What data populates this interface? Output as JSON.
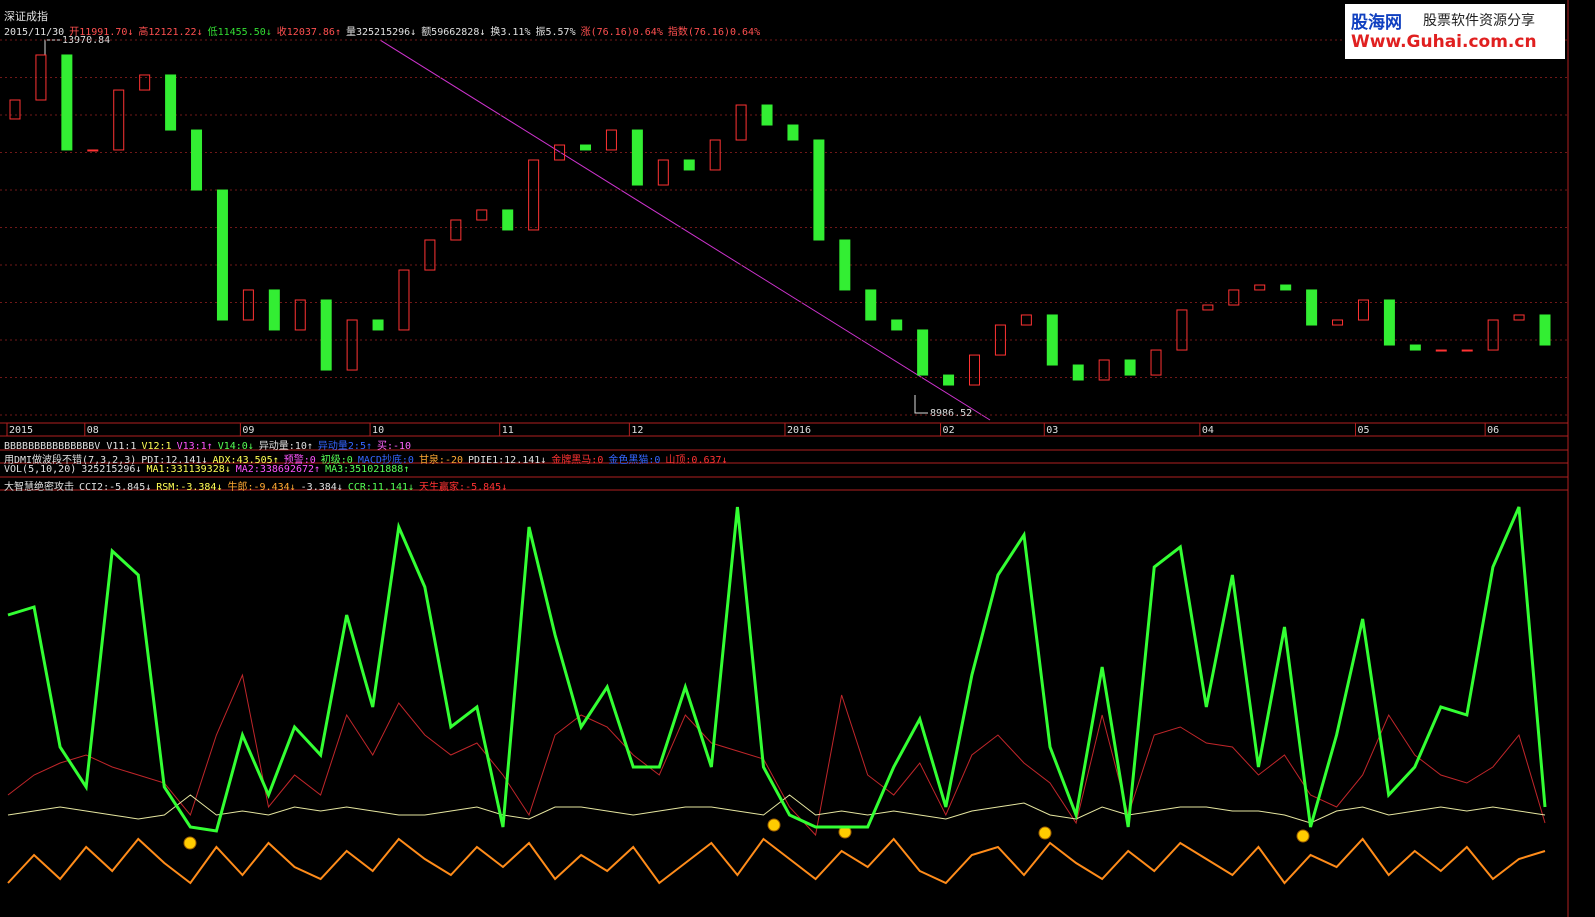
{
  "header": {
    "title": "深证成指",
    "logo": {
      "name": "股海网",
      "slogan": "股票软件资源分享",
      "url": "Www.Guhai.com.cn"
    },
    "quote": [
      {
        "text": "2015/11/30",
        "color": "#e0e0e0"
      },
      {
        "text": "开11991.70↓",
        "color": "#ff5050"
      },
      {
        "text": "高12121.22↓",
        "color": "#ff5050"
      },
      {
        "text": "低11455.50↓",
        "color": "#33dd33"
      },
      {
        "text": "收12037.86↑",
        "color": "#ff5050"
      },
      {
        "text": "量325215296↓",
        "color": "#e0e0e0"
      },
      {
        "text": "额59662828↓",
        "color": "#e0e0e0"
      },
      {
        "text": "换3.11%",
        "color": "#e0e0e0"
      },
      {
        "text": "振5.57%",
        "color": "#e0e0e0"
      },
      {
        "text": "涨(76.16)0.64%",
        "color": "#ff5050"
      },
      {
        "text": "指数(76.16)0.64%",
        "color": "#ff5050"
      }
    ]
  },
  "indicators": [
    {
      "items": [
        {
          "text": "BBBBBBBBBBBBBBBV V11:1",
          "color": "#e0e0e0"
        },
        {
          "text": "V12:1",
          "color": "#ffff55"
        },
        {
          "text": "V13:1↑",
          "color": "#ff55ff"
        },
        {
          "text": "V14:0↓",
          "color": "#55ff55"
        },
        {
          "text": "异动量:10↑",
          "color": "#e0e0e0"
        },
        {
          "text": "异动量2:5↑",
          "color": "#3366ff"
        },
        {
          "text": "买:-10",
          "color": "#ff66ff"
        }
      ]
    },
    {
      "items": [
        {
          "text": "用DMI做波段不错(7,3,2,3)",
          "color": "#e0e0e0"
        },
        {
          "text": "PDI:12.141↓",
          "color": "#e0e0e0"
        },
        {
          "text": "ADX:43.505↑",
          "color": "#ffff55"
        },
        {
          "text": "预警:0",
          "color": "#ff55ff"
        },
        {
          "text": "初级:0",
          "color": "#55ff55"
        },
        {
          "text": "MACD抄底:0",
          "color": "#3366ff"
        },
        {
          "text": "甘泉:-20",
          "color": "#ffaa33"
        },
        {
          "text": "PDIE1:12.141↓",
          "color": "#e0e0e0"
        },
        {
          "text": "金牌黑马:0",
          "color": "#ff3333"
        },
        {
          "text": "金色黑猫:0",
          "color": "#3366ff"
        },
        {
          "text": "山顶:0.637↓",
          "color": "#ff3333"
        }
      ]
    },
    {
      "items": [
        {
          "text": "VOL(5,10,20)",
          "color": "#e0e0e0"
        },
        {
          "text": "325215296↓",
          "color": "#e0e0e0"
        },
        {
          "text": "MA1:331139328↓",
          "color": "#ffff55"
        },
        {
          "text": "MA2:338692672↑",
          "color": "#ff55ff"
        },
        {
          "text": "MA3:351021888↑",
          "color": "#55ff55"
        }
      ]
    },
    {
      "items": [
        {
          "text": "大智慧绝密攻击",
          "color": "#e0e0e0"
        },
        {
          "text": "CCI2:-5.845↓",
          "color": "#e0e0e0"
        },
        {
          "text": "RSM:-3.384↓",
          "color": "#ffff55"
        },
        {
          "text": "牛郎:-9.434↓",
          "color": "#ffaa33"
        },
        {
          "text": "-3.384↓",
          "color": "#e0e0e0"
        },
        {
          "text": "CCR:11.141↓",
          "color": "#55ff55"
        },
        {
          "text": "天生赢家:-5.845↓",
          "color": "#ff3333"
        }
      ]
    }
  ],
  "chart_data": [
    {
      "type": "candlestick",
      "annotations": [
        "13970.84",
        "8986.52"
      ],
      "up_color": "#ff3333",
      "down_color": "#33ee33",
      "ylim": [
        8821,
        14241
      ],
      "xticks": [
        {
          "value": 0,
          "label": "2015"
        },
        {
          "value": 3,
          "label": "08"
        },
        {
          "value": 9,
          "label": "09"
        },
        {
          "value": 14,
          "label": "10"
        },
        {
          "value": 19,
          "label": "11"
        },
        {
          "value": 24,
          "label": "12"
        },
        {
          "value": 30,
          "label": "2016"
        },
        {
          "value": 36,
          "label": "02"
        },
        {
          "value": 40,
          "label": "03"
        },
        {
          "value": 46,
          "label": "04"
        },
        {
          "value": 52,
          "label": "05"
        },
        {
          "value": 57,
          "label": "06"
        }
      ],
      "open": [
        12900,
        13157,
        13767,
        12480,
        12480,
        13292,
        13496,
        12750,
        11937,
        10176,
        10583,
        10041,
        10447,
        9498,
        10176,
        10041,
        10853,
        11260,
        11531,
        11667,
        11396,
        12344,
        12547,
        12480,
        12750,
        12005,
        12344,
        12209,
        12615,
        13089,
        12818,
        12615,
        11260,
        10583,
        10176,
        10041,
        9430,
        9295,
        9701,
        10108,
        10244,
        9566,
        9363,
        9634,
        9430,
        9769,
        10312,
        10379,
        10583,
        10650,
        10583,
        10108,
        10176,
        10447,
        9837,
        9769,
        9769,
        9769,
        10176,
        10244
      ],
      "close": [
        13157,
        13767,
        12480,
        12480,
        13292,
        13496,
        12750,
        11937,
        10176,
        10583,
        10041,
        10447,
        9498,
        10176,
        10041,
        10853,
        11260,
        11531,
        11667,
        11396,
        12344,
        12547,
        12480,
        12750,
        12005,
        12344,
        12209,
        12615,
        13089,
        12818,
        12615,
        11260,
        10583,
        10176,
        10041,
        9430,
        9295,
        9701,
        10108,
        10244,
        9566,
        9363,
        9634,
        9430,
        9769,
        10312,
        10379,
        10583,
        10650,
        10583,
        10108,
        10176,
        10447,
        9837,
        9769,
        9769,
        9769,
        10176,
        10244,
        9837
      ]
    },
    {
      "type": "line",
      "ylim": [
        0,
        100
      ],
      "series": [
        {
          "color": "#c0262a",
          "width": 1,
          "values": [
            25,
            30,
            33,
            35,
            32,
            30,
            28,
            20,
            40,
            55,
            22,
            30,
            25,
            45,
            35,
            48,
            40,
            35,
            38,
            30,
            20,
            40,
            45,
            42,
            35,
            30,
            45,
            38,
            36,
            34,
            22,
            15,
            50,
            30,
            25,
            33,
            20,
            35,
            40,
            33,
            28,
            18,
            45,
            20,
            40,
            42,
            38,
            37,
            30,
            35,
            25,
            22,
            30,
            45,
            35,
            30,
            28,
            32,
            40,
            18
          ]
        },
        {
          "color": "#e6e6a0",
          "width": 1,
          "values": [
            20,
            21,
            22,
            21,
            20,
            19,
            20,
            25,
            20,
            21,
            20,
            22,
            21,
            22,
            21,
            20,
            20,
            21,
            22,
            20,
            19,
            22,
            22,
            21,
            20,
            21,
            22,
            22,
            21,
            20,
            25,
            20,
            21,
            20,
            21,
            20,
            19,
            21,
            22,
            23,
            20,
            19,
            22,
            20,
            21,
            22,
            22,
            21,
            21,
            20,
            18,
            21,
            22,
            20,
            21,
            22,
            21,
            22,
            21,
            20
          ]
        },
        {
          "color": "#ff8c1a",
          "width": 2,
          "values": [
            3,
            10,
            4,
            12,
            6,
            14,
            8,
            3,
            12,
            5,
            13,
            7,
            4,
            11,
            6,
            14,
            9,
            5,
            12,
            7,
            13,
            4,
            10,
            6,
            12,
            3,
            8,
            13,
            5,
            14,
            9,
            4,
            11,
            7,
            14,
            6,
            3,
            10,
            12,
            5,
            13,
            8,
            4,
            11,
            6,
            13,
            9,
            5,
            12,
            3,
            10,
            7,
            14,
            5,
            11,
            6,
            12,
            4,
            9,
            11
          ]
        },
        {
          "color": "#33ff33",
          "width": 3,
          "values": [
            70,
            72,
            37,
            27,
            86,
            80,
            27,
            17,
            16,
            40,
            25,
            42,
            35,
            70,
            47,
            92,
            77,
            42,
            47,
            17,
            92,
            65,
            42,
            52,
            32,
            32,
            52,
            32,
            97,
            32,
            20,
            17,
            17,
            17,
            32,
            44,
            22,
            55,
            80,
            90,
            37,
            20,
            57,
            17,
            82,
            87,
            47,
            80,
            32,
            67,
            17,
            40,
            69,
            25,
            32,
            47,
            45,
            82,
            97,
            22
          ]
        }
      ]
    }
  ]
}
